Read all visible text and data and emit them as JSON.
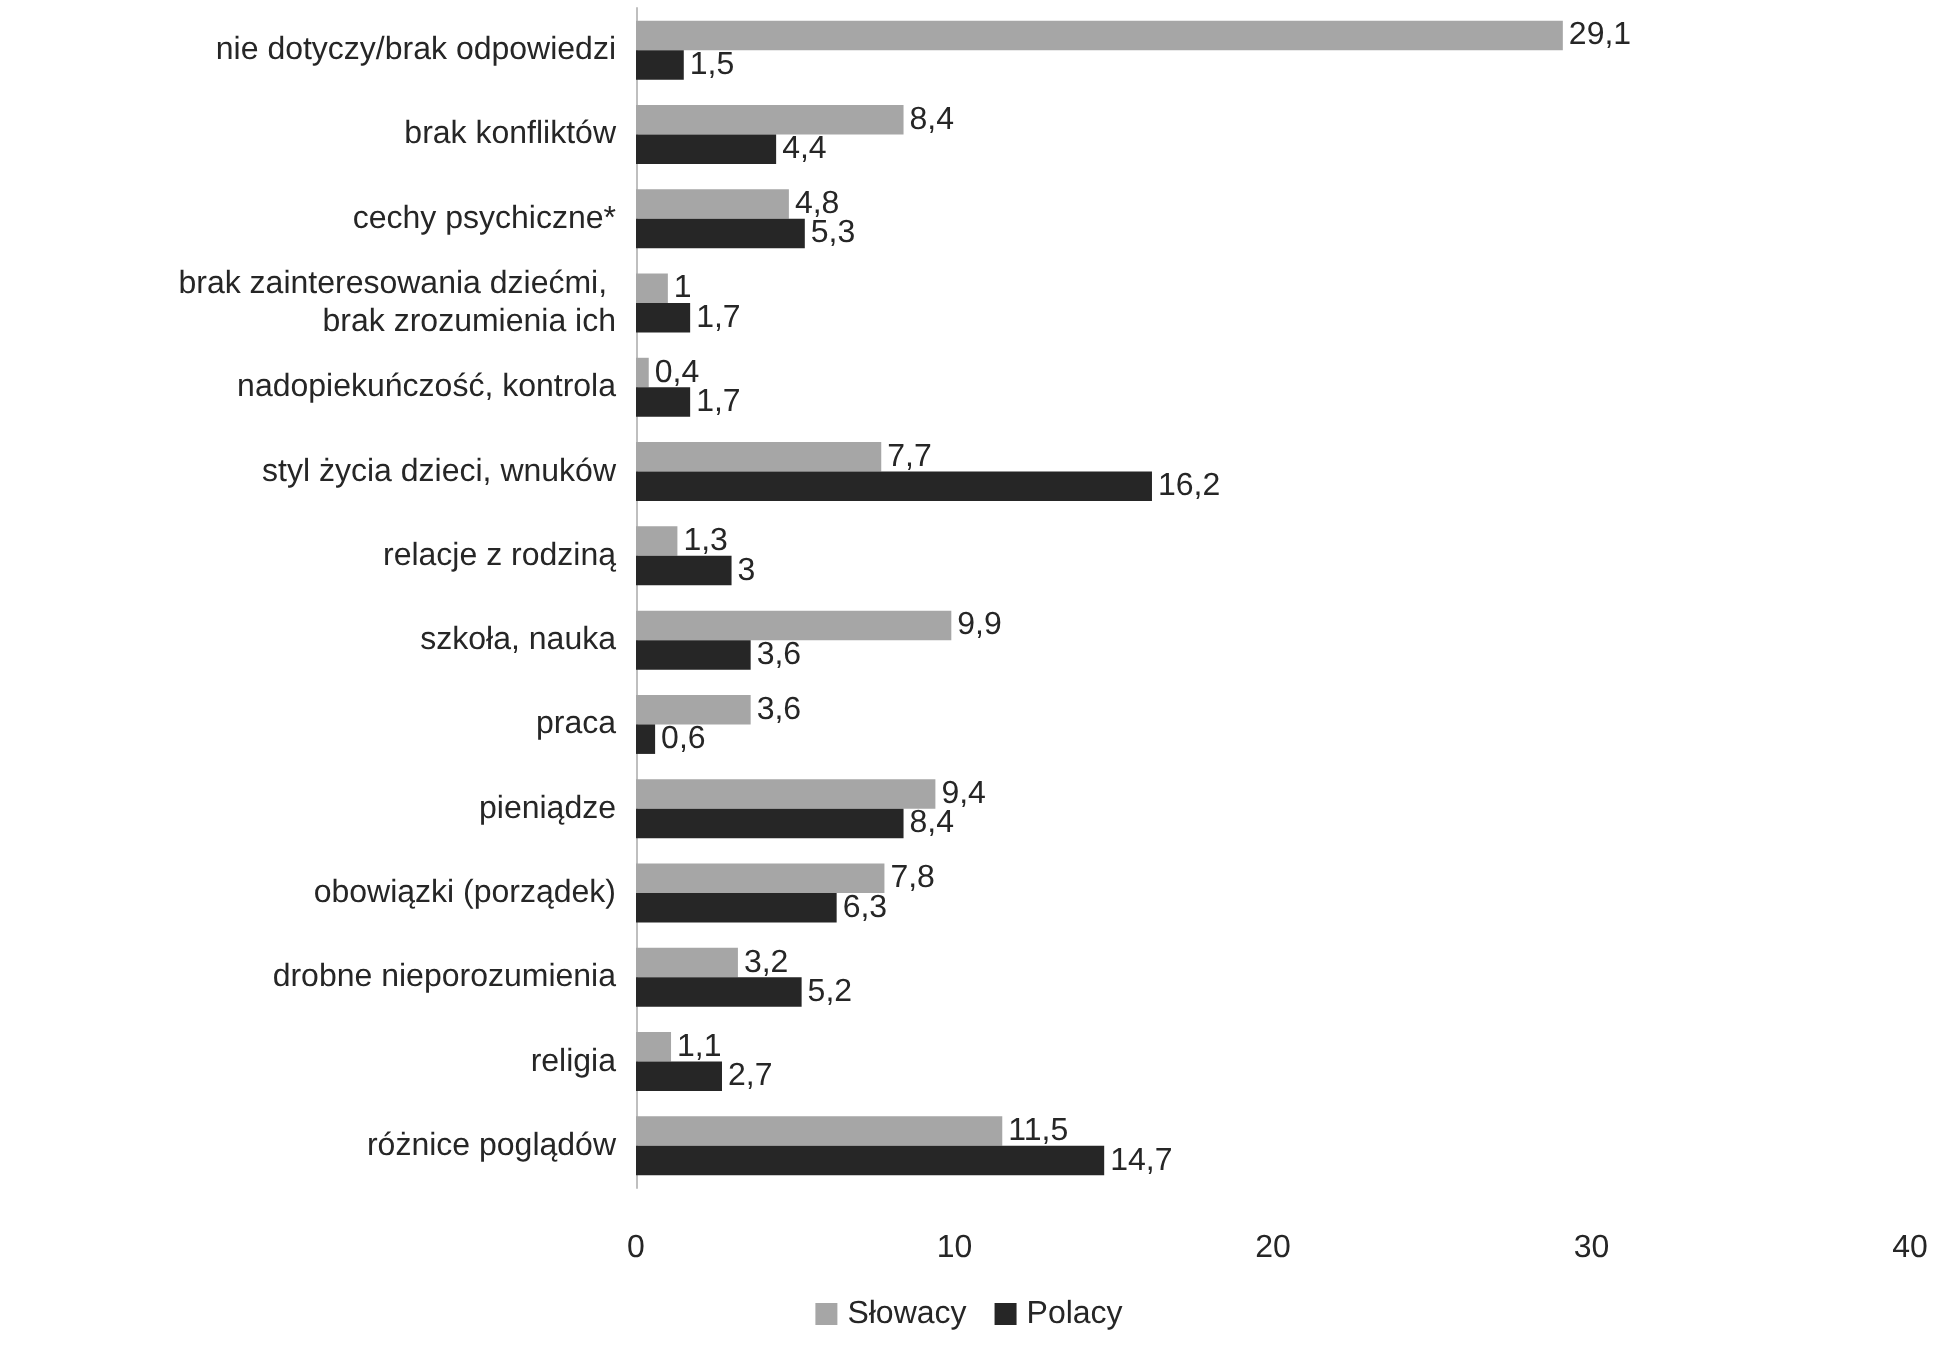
{
  "chart_data": {
    "type": "bar",
    "orientation": "horizontal",
    "categories": [
      "nie dotyczy/brak odpowiedzi",
      "brak konfliktów",
      "cechy psychiczne*",
      "brak zainteresowania dziećmi, brak zrozumienia ich",
      "nadopiekuńczość, kontrola",
      "styl życia dzieci, wnuków",
      "relacje z rodziną",
      "szkoła, nauka",
      "praca",
      "pieniądze",
      "obowiązki (porządek)",
      "drobne nieporozumienia",
      "religia",
      "różnice poglądów"
    ],
    "series": [
      {
        "name": "Słowacy",
        "color": "#a6a6a6",
        "values": [
          29.1,
          8.4,
          4.8,
          1,
          0.4,
          7.7,
          1.3,
          9.9,
          3.6,
          9.4,
          7.8,
          3.2,
          1.1,
          11.5
        ],
        "value_labels": [
          "29,1",
          "8,4",
          "4,8",
          "1",
          "0,4",
          "7,7",
          "1,3",
          "9,9",
          "3,6",
          "9,4",
          "7,8",
          "3,2",
          "1,1",
          "11,5"
        ]
      },
      {
        "name": "Polacy",
        "color": "#262626",
        "values": [
          1.5,
          4.4,
          5.3,
          1.7,
          1.7,
          16.2,
          3,
          3.6,
          0.6,
          8.4,
          6.3,
          5.2,
          2.7,
          14.7
        ],
        "value_labels": [
          "1,5",
          "4,4",
          "5,3",
          "1,7",
          "1,7",
          "16,2",
          "3",
          "3,6",
          "0,6",
          "8,4",
          "6,3",
          "5,2",
          "2,7",
          "14,7"
        ]
      }
    ],
    "xlim": [
      0,
      40
    ],
    "xticks": [
      0,
      10,
      20,
      30,
      40
    ],
    "grid": false,
    "legend": "bottom"
  }
}
